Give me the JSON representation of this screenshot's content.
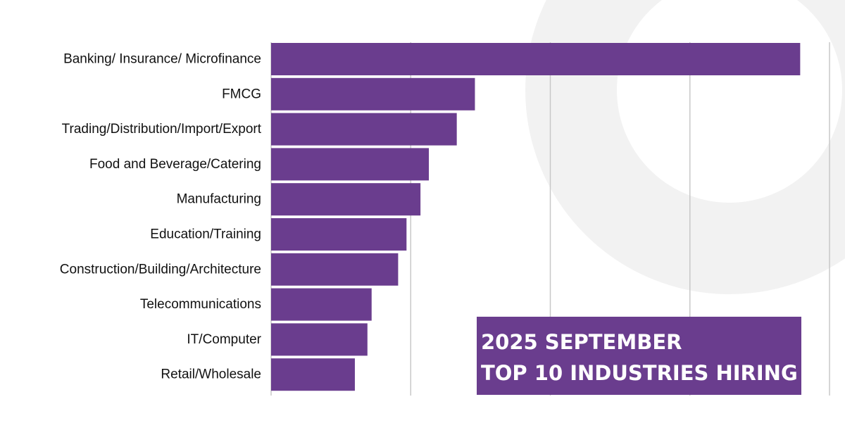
{
  "colors": {
    "bar": "#6a3d8e",
    "grid": "#c8c8c8",
    "decor_ring": "#f2f2f2",
    "label_text": "#111111",
    "title_text": "#ffffff"
  },
  "title": {
    "line1": "2025 SEPTEMBER",
    "line2": "TOP 10 INDUSTRIES HIRING"
  },
  "chart_data": {
    "type": "bar",
    "orientation": "horizontal",
    "categories": [
      "Banking/ Insurance/ Microfinance",
      "FMCG",
      "Trading/Distribution/Import/Export",
      "Food and Beverage/Catering",
      "Manufacturing",
      "Education/Training",
      "Construction/Building/Architecture",
      "Telecommunications",
      "IT/Computer",
      "Retail/Wholesale"
    ],
    "values": [
      3.79,
      1.46,
      1.33,
      1.13,
      1.07,
      0.97,
      0.91,
      0.72,
      0.69,
      0.6
    ],
    "xlim": [
      0,
      4
    ],
    "grid": true,
    "value_axis_labels": false,
    "legend": "none"
  }
}
